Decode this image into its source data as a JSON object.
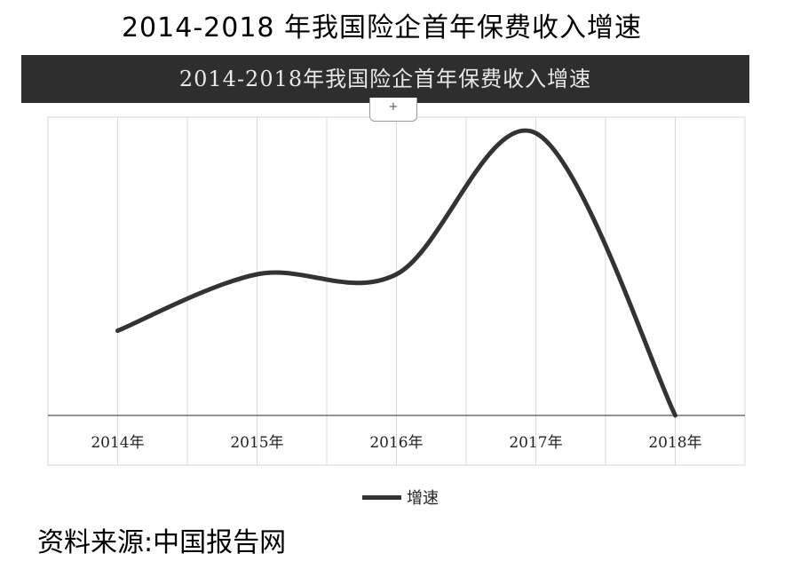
{
  "page": {
    "title": "2014-2018 年我国险企首年保费收入增速",
    "source": "资料来源:中国报告网"
  },
  "chart_header": {
    "title": "2014-2018年我国险企首年保费收入增速",
    "menu_icon": "+"
  },
  "colors": {
    "header_bg": "#2e2e2e",
    "line": "#333333",
    "grid": "#d9d9d9"
  },
  "chart_data": {
    "type": "line",
    "title": "2014-2018年我国险企首年保费收入增速",
    "categories": [
      "2014年",
      "2015年",
      "2016年",
      "2017年",
      "2018年"
    ],
    "series": [
      {
        "name": "增速",
        "values": [
          0.3,
          0.5,
          0.5,
          1.0,
          0.0
        ]
      }
    ],
    "smooth": true,
    "grid": "vertical",
    "legend": "bottom-center",
    "xlabel": "",
    "ylabel": ""
  }
}
